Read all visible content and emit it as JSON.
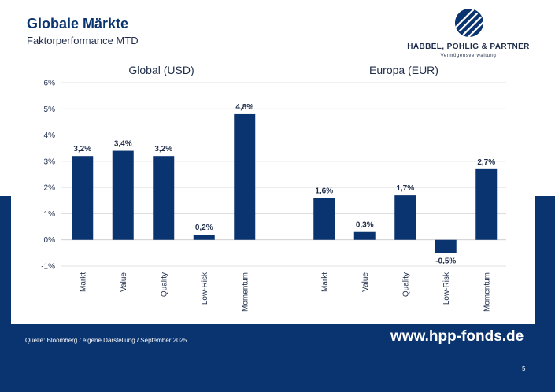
{
  "header": {
    "title": "Globale Märkte",
    "subtitle": "Faktorperformance MTD"
  },
  "logo": {
    "name": "HABBEL, POHLIG & PARTNER",
    "tagline": "Vermögensverwaltung",
    "icon": "striped-circle-logo-icon"
  },
  "chart_data": {
    "type": "bar",
    "ylim": [
      -1,
      6
    ],
    "yticks": [
      -1,
      0,
      1,
      2,
      3,
      4,
      5,
      6
    ],
    "ytick_labels": [
      "-1%",
      "0%",
      "1%",
      "2%",
      "3%",
      "4%",
      "5%",
      "6%"
    ],
    "grid": true,
    "bar_color": "#0a3470",
    "panels": [
      {
        "title": "Global (USD)",
        "categories": [
          "Markt",
          "Value",
          "Quality",
          "Low-Risk",
          "Momentum"
        ],
        "values": [
          3.2,
          3.4,
          3.2,
          0.2,
          4.8
        ],
        "labels": [
          "3,2%",
          "3,4%",
          "3,2%",
          "0,2%",
          "4,8%"
        ]
      },
      {
        "title": "Europa (EUR)",
        "categories": [
          "Markt",
          "Value",
          "Quality",
          "Low-Risk",
          "Momentum"
        ],
        "values": [
          1.6,
          0.3,
          1.7,
          -0.5,
          2.7
        ],
        "labels": [
          "1,6%",
          "0,3%",
          "1,7%",
          "-0,5%",
          "2,7%"
        ]
      }
    ]
  },
  "footer": {
    "source": "Quelle: Bloomberg / eigene Darstellung / September 2025",
    "url": "www.hpp-fonds.de",
    "page": "5"
  },
  "colors": {
    "navy": "#0a3470",
    "text_dark": "#1f2d4a",
    "grid": "#d9d9d9"
  }
}
